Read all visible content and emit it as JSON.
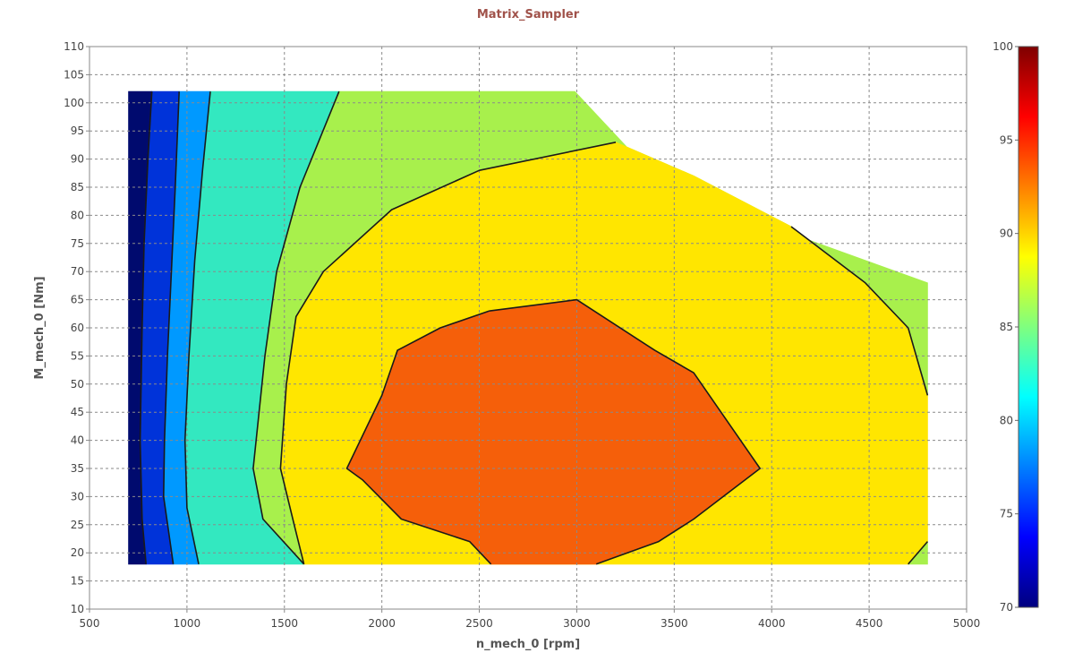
{
  "chart_data": {
    "type": "contour",
    "title": "Matrix_Sampler",
    "xlabel": "n_mech_0 [rpm]",
    "ylabel": "M_mech_0 [Nm]",
    "xlim": [
      500,
      5000
    ],
    "ylim": [
      10,
      110
    ],
    "xticks": [
      500,
      1000,
      1500,
      2000,
      2500,
      3000,
      3500,
      4000,
      4500,
      5000
    ],
    "yticks": [
      10,
      15,
      20,
      25,
      30,
      35,
      40,
      45,
      50,
      55,
      60,
      65,
      70,
      75,
      80,
      85,
      90,
      95,
      100,
      105,
      110
    ],
    "grid": true,
    "colorbar": {
      "range": [
        70,
        100
      ],
      "ticks": [
        70,
        75,
        80,
        85,
        90,
        95,
        100
      ],
      "colormap": [
        "#00007f",
        "#0000ff",
        "#007fff",
        "#00ffff",
        "#7fff7f",
        "#ffff00",
        "#ff7f00",
        "#ff0000",
        "#7f0000"
      ]
    },
    "bands": [
      {
        "range": "<70",
        "color": "#000a6e",
        "region": [
          [
            700,
            102
          ],
          [
            820,
            102
          ],
          [
            800,
            90
          ],
          [
            780,
            75
          ],
          [
            770,
            60
          ],
          [
            760,
            40
          ],
          [
            770,
            26
          ],
          [
            790,
            18
          ],
          [
            700,
            18
          ]
        ]
      },
      {
        "range": "70-75",
        "color": "#0033d9",
        "region": [
          [
            820,
            102
          ],
          [
            960,
            102
          ],
          [
            940,
            85
          ],
          [
            920,
            70
          ],
          [
            900,
            55
          ],
          [
            885,
            40
          ],
          [
            880,
            30
          ],
          [
            930,
            18
          ],
          [
            790,
            18
          ],
          [
            770,
            26
          ],
          [
            760,
            40
          ],
          [
            770,
            60
          ],
          [
            780,
            75
          ],
          [
            800,
            90
          ]
        ]
      },
      {
        "range": "75-80",
        "color": "#0099ff",
        "region": [
          [
            960,
            102
          ],
          [
            1120,
            102
          ],
          [
            1080,
            88
          ],
          [
            1040,
            72
          ],
          [
            1010,
            55
          ],
          [
            990,
            40
          ],
          [
            1000,
            28
          ],
          [
            1060,
            18
          ],
          [
            930,
            18
          ],
          [
            880,
            30
          ],
          [
            885,
            40
          ],
          [
            900,
            55
          ],
          [
            920,
            70
          ],
          [
            940,
            85
          ]
        ]
      },
      {
        "range": "80-85",
        "color": "#33e8c0",
        "region": [
          [
            1120,
            102
          ],
          [
            1780,
            102
          ],
          [
            1580,
            85
          ],
          [
            1460,
            70
          ],
          [
            1400,
            55
          ],
          [
            1340,
            35
          ],
          [
            1390,
            26
          ],
          [
            1600,
            18
          ],
          [
            1060,
            18
          ],
          [
            1000,
            28
          ],
          [
            990,
            40
          ],
          [
            1010,
            55
          ],
          [
            1040,
            72
          ],
          [
            1080,
            88
          ]
        ]
      },
      {
        "range": "85-90",
        "color": "#a8f04c",
        "region": [
          [
            1780,
            102
          ],
          [
            2990,
            102
          ],
          [
            3450,
            85
          ],
          [
            4000,
            78
          ],
          [
            4800,
            68
          ],
          [
            4800,
            48
          ],
          [
            4700,
            60
          ],
          [
            4480,
            68
          ],
          [
            4100,
            78
          ],
          [
            3600,
            87
          ],
          [
            3200,
            93
          ],
          [
            2500,
            88
          ],
          [
            2050,
            81
          ],
          [
            1700,
            70
          ],
          [
            1560,
            62
          ],
          [
            1510,
            50
          ],
          [
            1480,
            35
          ],
          [
            1550,
            25
          ],
          [
            1600,
            18
          ],
          [
            1390,
            26
          ],
          [
            1340,
            35
          ],
          [
            1400,
            55
          ],
          [
            1460,
            70
          ],
          [
            1580,
            85
          ]
        ]
      },
      {
        "range": "85-90",
        "color": "#a8f04c",
        "region": [
          [
            4700,
            18
          ],
          [
            4800,
            18
          ],
          [
            4800,
            22
          ]
        ]
      },
      {
        "range": "90-95",
        "color": "#ffe600",
        "region": [
          [
            1600,
            18
          ],
          [
            4700,
            18
          ],
          [
            4800,
            22
          ],
          [
            4800,
            48
          ],
          [
            4700,
            60
          ],
          [
            4480,
            68
          ],
          [
            4100,
            78
          ],
          [
            3600,
            87
          ],
          [
            3200,
            93
          ],
          [
            2500,
            88
          ],
          [
            2050,
            81
          ],
          [
            1700,
            70
          ],
          [
            1560,
            62
          ],
          [
            1510,
            50
          ],
          [
            1480,
            35
          ],
          [
            1550,
            25
          ]
        ]
      },
      {
        "range": "95-100",
        "color": "#f55f0a",
        "region": [
          [
            2550,
            63
          ],
          [
            3000,
            65
          ],
          [
            3400,
            56
          ],
          [
            3600,
            52
          ],
          [
            3940,
            35
          ],
          [
            3600,
            26
          ],
          [
            3420,
            22
          ],
          [
            3100,
            18
          ],
          [
            2560,
            18
          ],
          [
            2450,
            22
          ],
          [
            2100,
            26
          ],
          [
            1900,
            33
          ],
          [
            1820,
            35
          ],
          [
            2000,
            48
          ],
          [
            2080,
            56
          ],
          [
            2300,
            60
          ]
        ]
      }
    ],
    "contour_lines": [
      [
        [
          820,
          102
        ],
        [
          800,
          90
        ],
        [
          780,
          75
        ],
        [
          770,
          60
        ],
        [
          760,
          40
        ],
        [
          770,
          26
        ],
        [
          790,
          18
        ]
      ],
      [
        [
          960,
          102
        ],
        [
          940,
          85
        ],
        [
          920,
          70
        ],
        [
          900,
          55
        ],
        [
          885,
          40
        ],
        [
          880,
          30
        ],
        [
          930,
          18
        ]
      ],
      [
        [
          1120,
          102
        ],
        [
          1080,
          88
        ],
        [
          1040,
          72
        ],
        [
          1010,
          55
        ],
        [
          990,
          40
        ],
        [
          1000,
          28
        ],
        [
          1060,
          18
        ]
      ],
      [
        [
          1780,
          102
        ],
        [
          1580,
          85
        ],
        [
          1460,
          70
        ],
        [
          1400,
          55
        ],
        [
          1340,
          35
        ],
        [
          1390,
          26
        ],
        [
          1600,
          18
        ]
      ],
      [
        [
          3200,
          93
        ],
        [
          2500,
          88
        ],
        [
          2050,
          81
        ],
        [
          1700,
          70
        ],
        [
          1560,
          62
        ],
        [
          1510,
          50
        ],
        [
          1480,
          35
        ],
        [
          1550,
          25
        ],
        [
          1600,
          18
        ]
      ],
      [
        [
          4100,
          78
        ],
        [
          4480,
          68
        ],
        [
          4700,
          60
        ],
        [
          4800,
          48
        ]
      ],
      [
        [
          4700,
          18
        ],
        [
          4800,
          22
        ]
      ],
      [
        [
          2550,
          63
        ],
        [
          3000,
          65
        ],
        [
          3400,
          56
        ],
        [
          3600,
          52
        ],
        [
          3940,
          35
        ],
        [
          3600,
          26
        ],
        [
          3420,
          22
        ],
        [
          3100,
          18
        ]
      ],
      [
        [
          2560,
          18
        ],
        [
          2450,
          22
        ],
        [
          2100,
          26
        ],
        [
          1900,
          33
        ],
        [
          1820,
          35
        ],
        [
          2000,
          48
        ],
        [
          2080,
          56
        ],
        [
          2300,
          60
        ],
        [
          2550,
          63
        ]
      ]
    ]
  }
}
